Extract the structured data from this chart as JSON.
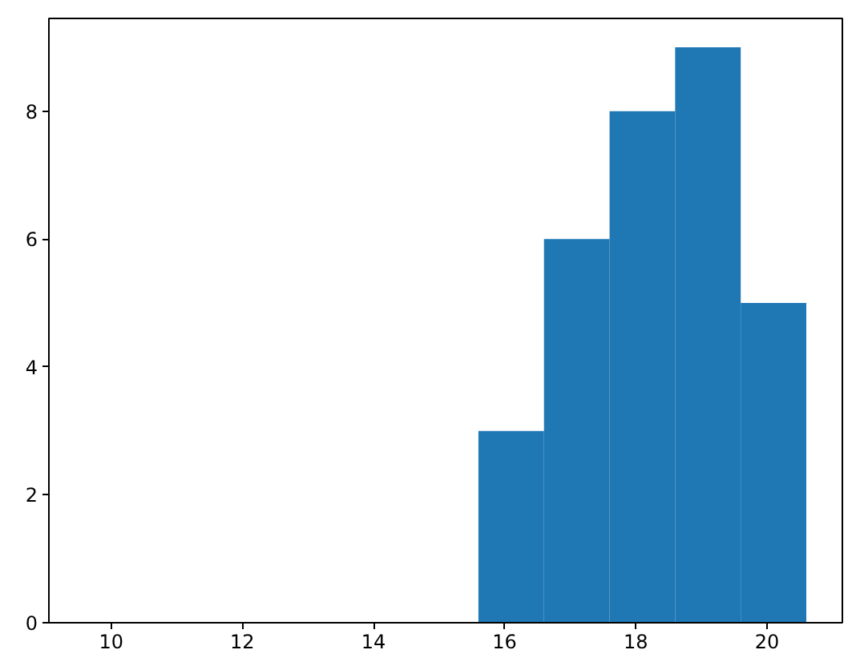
{
  "chart_data": {
    "type": "histogram",
    "bins": [
      15.6,
      16.6,
      17.6,
      18.6,
      19.6,
      20.6
    ],
    "values": [
      3,
      6,
      8,
      9,
      5
    ],
    "color": "#1f77b4",
    "xlim": [
      9.05,
      21.15
    ],
    "ylim": [
      0,
      9.45
    ],
    "xticks": [
      10,
      12,
      14,
      16,
      18,
      20
    ],
    "yticks": [
      0,
      2,
      4,
      6,
      8
    ],
    "grid": false
  }
}
